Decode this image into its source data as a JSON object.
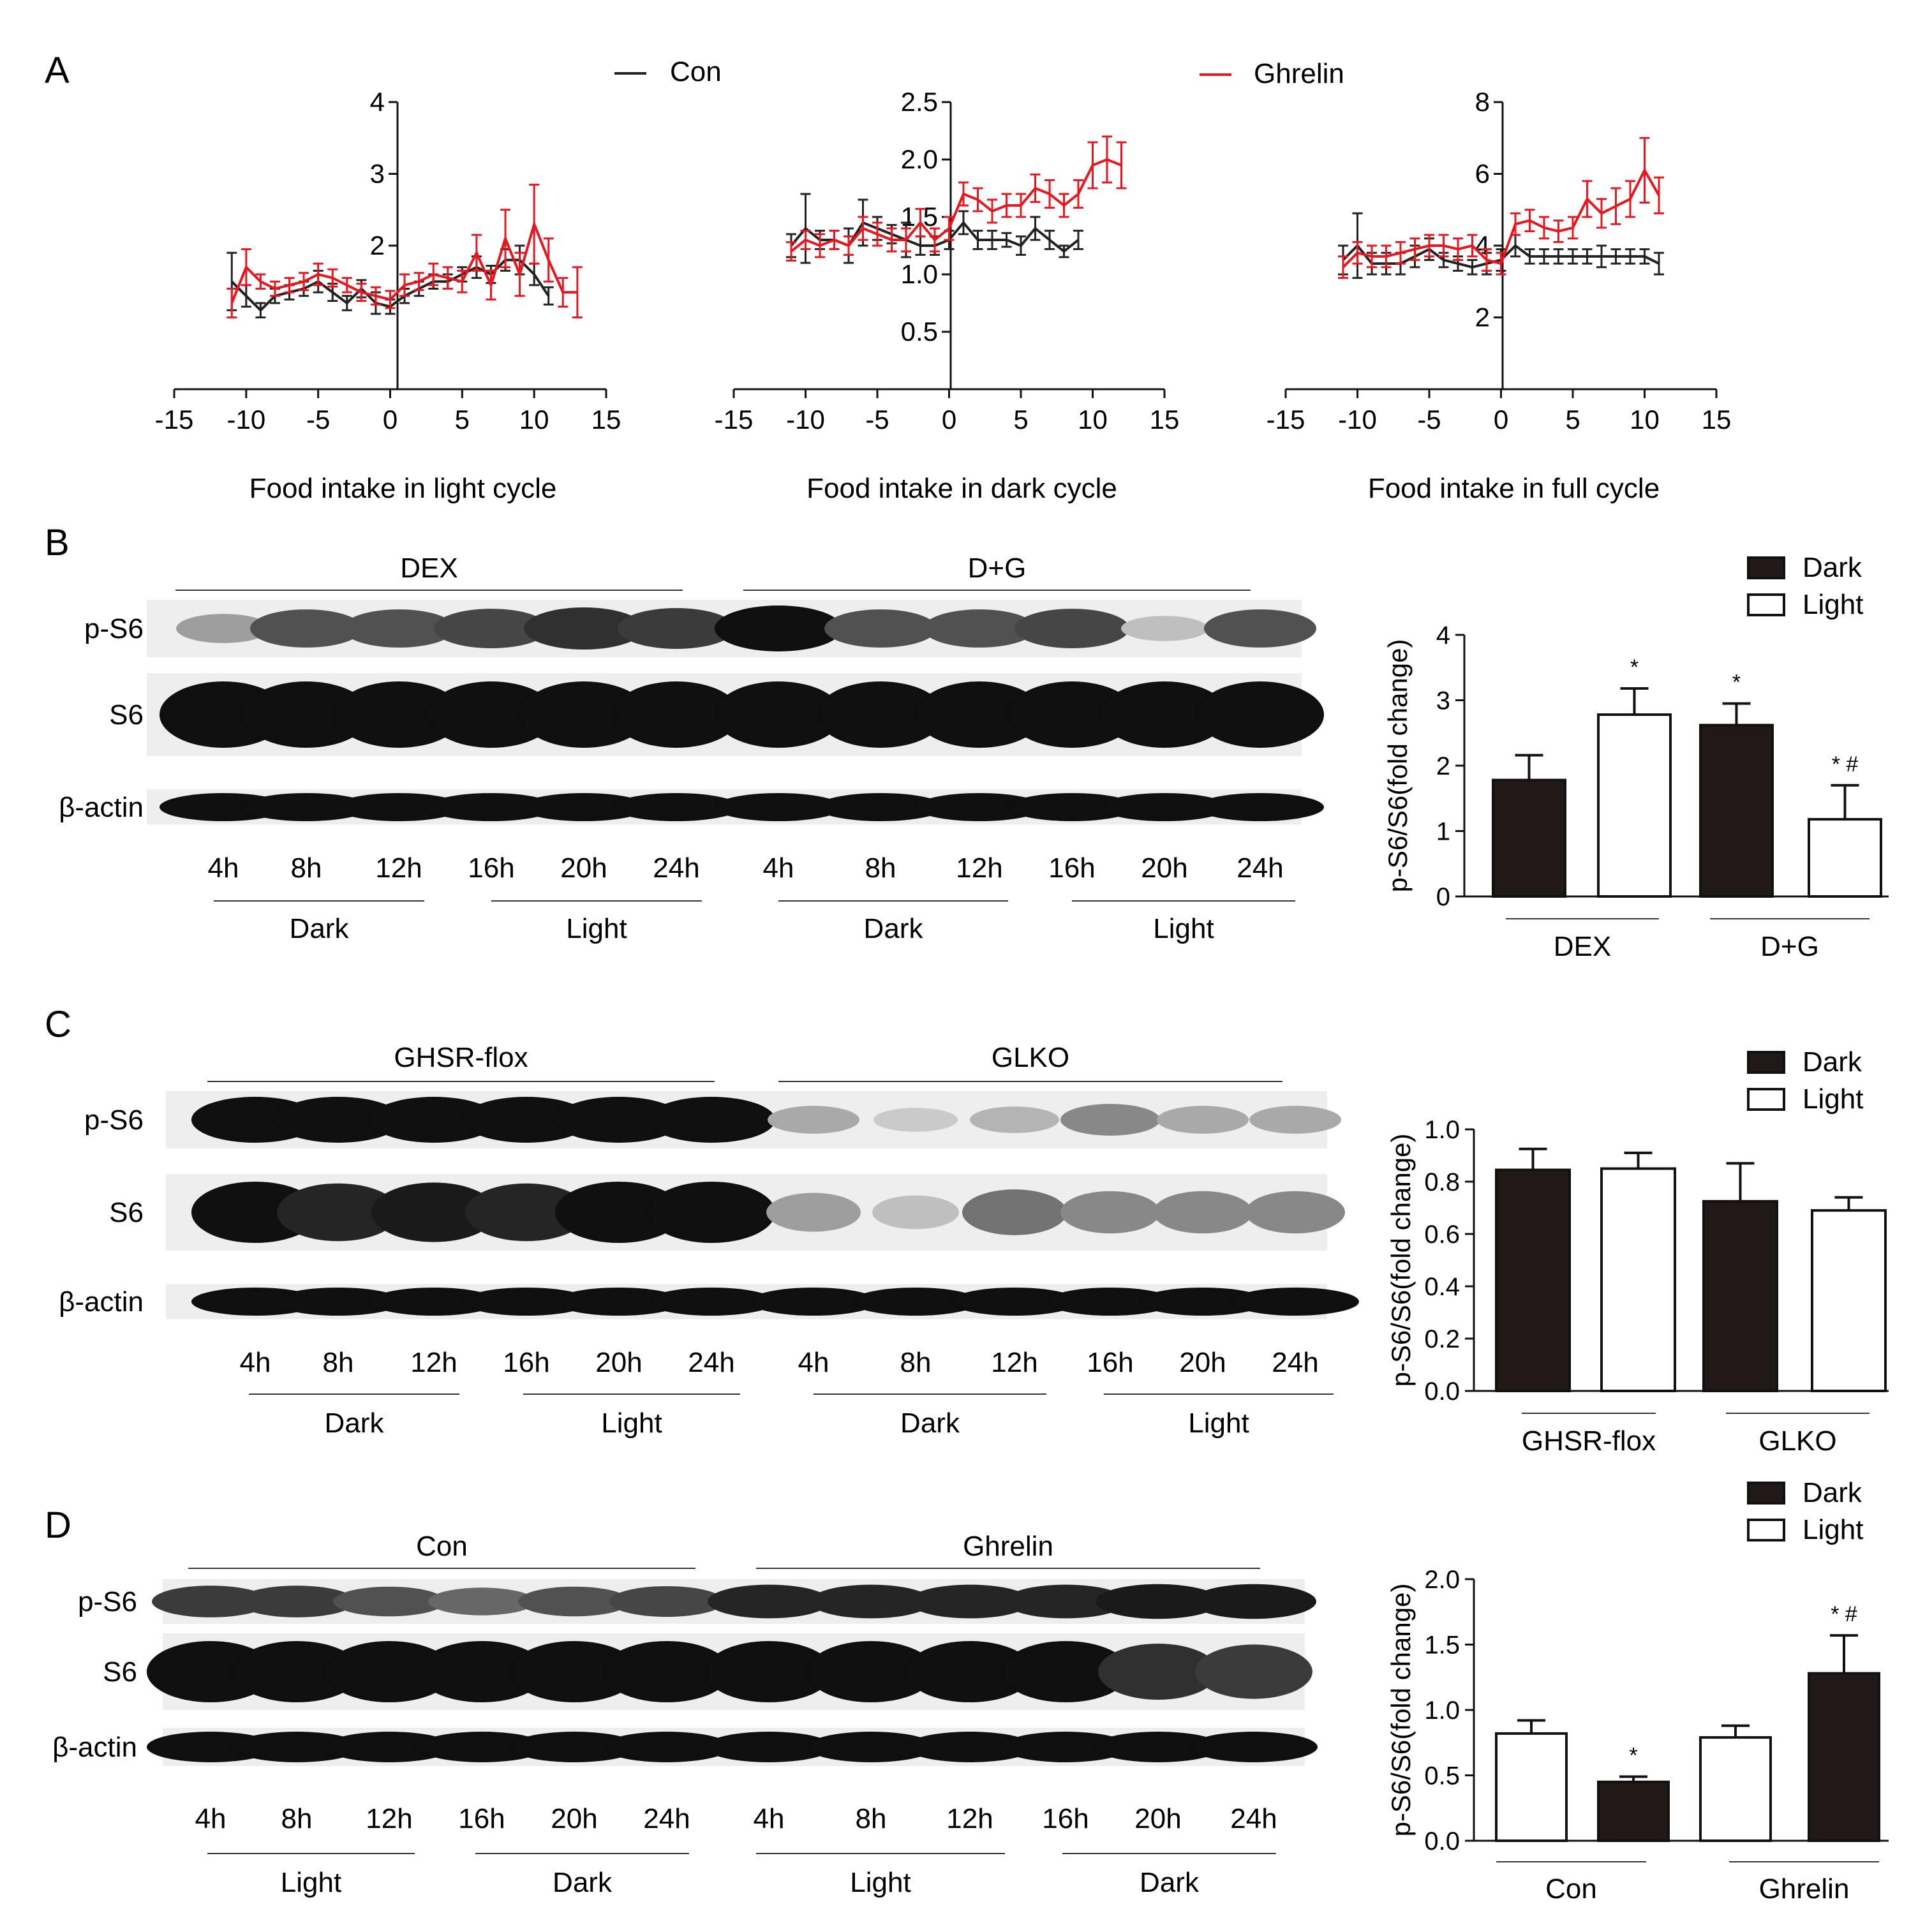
{
  "panel_letters": {
    "a": "A",
    "b": "B",
    "c": "C",
    "d": "D"
  },
  "colors": {
    "con": "#222222",
    "ghrelin": "#e8161e",
    "dark_bar": "#211918",
    "light_bar": "#ffffff"
  },
  "panel_a": {
    "legend": {
      "con": "Con",
      "ghrelin": "Ghrelin"
    },
    "x_ticks": [
      "-15",
      "-10",
      "-5",
      "0",
      "5",
      "10",
      "15"
    ]
  },
  "chart_data": [
    {
      "type": "line",
      "title": "",
      "xlabel": "Food intake in light cycle",
      "ylabel": "",
      "xlim": [
        -15,
        15
      ],
      "ylim": [
        0,
        4
      ],
      "y_ticks": [
        "2",
        "3",
        "4"
      ],
      "series": [
        {
          "name": "Con",
          "x": [
            -11,
            -10,
            -9,
            -8,
            -7,
            -6,
            -5,
            -4,
            -3,
            -2,
            -1,
            0,
            1,
            2,
            3,
            4,
            5,
            6,
            7,
            8,
            9,
            10,
            11
          ],
          "y": [
            1.5,
            1.3,
            1.1,
            1.3,
            1.35,
            1.4,
            1.5,
            1.35,
            1.2,
            1.4,
            1.2,
            1.15,
            1.3,
            1.4,
            1.5,
            1.5,
            1.6,
            1.7,
            1.6,
            1.8,
            1.8,
            1.6,
            1.3
          ],
          "err": [
            0.4,
            0.15,
            0.1,
            0.1,
            0.1,
            0.1,
            0.15,
            0.12,
            0.1,
            0.12,
            0.15,
            0.1,
            0.1,
            0.1,
            0.1,
            0.1,
            0.1,
            0.15,
            0.12,
            0.15,
            0.2,
            0.15,
            0.12
          ]
        },
        {
          "name": "Ghrelin",
          "x": [
            -11,
            -10,
            -9,
            -8,
            -7,
            -6,
            -5,
            -4,
            -3,
            -2,
            -1,
            0,
            1,
            2,
            3,
            4,
            5,
            6,
            7,
            8,
            9,
            10,
            11,
            12,
            13
          ],
          "y": [
            1.2,
            1.7,
            1.5,
            1.4,
            1.45,
            1.5,
            1.6,
            1.55,
            1.45,
            1.35,
            1.3,
            1.25,
            1.45,
            1.5,
            1.6,
            1.55,
            1.5,
            1.9,
            1.45,
            2.1,
            1.6,
            2.3,
            1.8,
            1.35,
            1.35
          ],
          "err": [
            0.2,
            0.25,
            0.1,
            0.1,
            0.1,
            0.12,
            0.15,
            0.12,
            0.1,
            0.12,
            0.12,
            0.12,
            0.15,
            0.12,
            0.15,
            0.15,
            0.15,
            0.25,
            0.2,
            0.4,
            0.3,
            0.55,
            0.3,
            0.2,
            0.35
          ]
        }
      ]
    },
    {
      "type": "line",
      "title": "",
      "xlabel": "Food intake in dark cycle",
      "ylabel": "",
      "xlim": [
        -15,
        15
      ],
      "ylim": [
        0,
        2.5
      ],
      "y_ticks": [
        "0.5",
        "1.0",
        "1.5",
        "2.0",
        "2.5"
      ],
      "series": [
        {
          "name": "Con",
          "x": [
            -11,
            -10,
            -9,
            -8,
            -7,
            -6,
            -5,
            -4,
            -3,
            -2,
            -1,
            0,
            1,
            2,
            3,
            4,
            5,
            6,
            7,
            8,
            9
          ],
          "y": [
            1.25,
            1.4,
            1.3,
            1.3,
            1.25,
            1.45,
            1.4,
            1.35,
            1.3,
            1.25,
            1.25,
            1.3,
            1.45,
            1.3,
            1.3,
            1.3,
            1.25,
            1.4,
            1.3,
            1.2,
            1.3
          ],
          "err": [
            0.1,
            0.3,
            0.08,
            0.08,
            0.15,
            0.2,
            0.1,
            0.08,
            0.15,
            0.08,
            0.08,
            0.08,
            0.1,
            0.08,
            0.08,
            0.06,
            0.08,
            0.1,
            0.08,
            0.05,
            0.08
          ]
        },
        {
          "name": "Ghrelin",
          "x": [
            -11,
            -10,
            -9,
            -8,
            -7,
            -6,
            -5,
            -4,
            -3,
            -2,
            -1,
            0,
            1,
            2,
            3,
            4,
            5,
            6,
            7,
            8,
            9,
            10,
            11,
            12
          ],
          "y": [
            1.2,
            1.3,
            1.25,
            1.3,
            1.25,
            1.4,
            1.35,
            1.3,
            1.3,
            1.45,
            1.3,
            1.4,
            1.7,
            1.65,
            1.55,
            1.6,
            1.6,
            1.75,
            1.7,
            1.6,
            1.7,
            1.95,
            2.0,
            1.95
          ],
          "err": [
            0.08,
            0.08,
            0.1,
            0.08,
            0.08,
            0.1,
            0.1,
            0.1,
            0.1,
            0.12,
            0.1,
            0.1,
            0.1,
            0.1,
            0.1,
            0.1,
            0.1,
            0.12,
            0.12,
            0.1,
            0.12,
            0.2,
            0.2,
            0.2
          ]
        }
      ]
    },
    {
      "type": "line",
      "title": "",
      "xlabel": "Food intake in full cycle",
      "ylabel": "",
      "xlim": [
        -15,
        15
      ],
      "ylim": [
        0,
        8
      ],
      "y_ticks": [
        "2",
        "4",
        "6",
        "8"
      ],
      "series": [
        {
          "name": "Con",
          "x": [
            -11,
            -10,
            -9,
            -8,
            -7,
            -6,
            -5,
            -4,
            -3,
            -2,
            -1,
            0,
            1,
            2,
            3,
            4,
            5,
            6,
            7,
            8,
            9,
            10,
            11
          ],
          "y": [
            3.6,
            4.0,
            3.5,
            3.5,
            3.5,
            3.7,
            3.9,
            3.6,
            3.5,
            3.4,
            3.5,
            3.6,
            4.0,
            3.7,
            3.7,
            3.7,
            3.7,
            3.7,
            3.7,
            3.7,
            3.7,
            3.7,
            3.5
          ],
          "err": [
            0.4,
            0.9,
            0.3,
            0.3,
            0.3,
            0.3,
            0.3,
            0.2,
            0.2,
            0.2,
            0.3,
            0.3,
            0.3,
            0.2,
            0.2,
            0.2,
            0.2,
            0.2,
            0.3,
            0.2,
            0.2,
            0.2,
            0.3
          ]
        },
        {
          "name": "Ghrelin",
          "x": [
            -11,
            -10,
            -9,
            -8,
            -7,
            -6,
            -5,
            -4,
            -3,
            -2,
            -1,
            0,
            1,
            2,
            3,
            4,
            5,
            6,
            7,
            8,
            9,
            10,
            11
          ],
          "y": [
            3.4,
            3.8,
            3.7,
            3.7,
            3.8,
            3.9,
            4.0,
            4.0,
            3.9,
            4.0,
            3.6,
            3.5,
            4.6,
            4.7,
            4.5,
            4.4,
            4.5,
            5.3,
            4.9,
            5.1,
            5.3,
            6.1,
            5.4
          ],
          "err": [
            0.3,
            0.3,
            0.3,
            0.3,
            0.3,
            0.3,
            0.3,
            0.3,
            0.3,
            0.3,
            0.3,
            0.3,
            0.3,
            0.3,
            0.3,
            0.3,
            0.3,
            0.5,
            0.4,
            0.5,
            0.5,
            0.9,
            0.5
          ]
        }
      ]
    },
    {
      "type": "bar",
      "title": "",
      "xlabel": "",
      "ylabel": "p-S6/S6(fold change)",
      "ylim": [
        0,
        4
      ],
      "y_ticks": [
        "0",
        "1",
        "2",
        "3",
        "4"
      ],
      "groups": [
        "DEX",
        "D+G"
      ],
      "series": [
        {
          "name": "Dark"
        },
        {
          "name": "Light"
        }
      ],
      "bars": [
        {
          "group": "DEX",
          "series": "Dark",
          "value": 1.78,
          "err": 0.38,
          "mark": ""
        },
        {
          "group": "DEX",
          "series": "Light",
          "value": 2.78,
          "err": 0.4,
          "mark": "*"
        },
        {
          "group": "D+G",
          "series": "Dark",
          "value": 2.62,
          "err": 0.33,
          "mark": "*"
        },
        {
          "group": "D+G",
          "series": "Light",
          "value": 1.18,
          "err": 0.52,
          "mark": "* #"
        }
      ]
    },
    {
      "type": "bar",
      "title": "",
      "xlabel": "",
      "ylabel": "p-S6/S6(fold change)",
      "ylim": [
        0,
        1.0
      ],
      "y_ticks": [
        "0.0",
        "0.2",
        "0.4",
        "0.6",
        "0.8",
        "1.0"
      ],
      "groups": [
        "GHSR-flox",
        "GLKO"
      ],
      "series": [
        {
          "name": "Dark"
        },
        {
          "name": "Light"
        }
      ],
      "bars": [
        {
          "group": "GHSR-flox",
          "series": "Dark",
          "value": 0.845,
          "err": 0.08,
          "mark": ""
        },
        {
          "group": "GHSR-flox",
          "series": "Light",
          "value": 0.85,
          "err": 0.06,
          "mark": ""
        },
        {
          "group": "GLKO",
          "series": "Dark",
          "value": 0.725,
          "err": 0.145,
          "mark": ""
        },
        {
          "group": "GLKO",
          "series": "Light",
          "value": 0.69,
          "err": 0.05,
          "mark": ""
        }
      ]
    },
    {
      "type": "bar",
      "title": "",
      "xlabel": "",
      "ylabel": "p-S6/S6(fold change)",
      "ylim": [
        0,
        2.0
      ],
      "y_ticks": [
        "0.0",
        "0.5",
        "1.0",
        "1.5",
        "2.0"
      ],
      "groups": [
        "Con",
        "Ghrelin"
      ],
      "series": [
        {
          "name": "Dark"
        },
        {
          "name": "Light"
        }
      ],
      "bars": [
        {
          "group": "Con",
          "series": "Light",
          "value": 0.82,
          "err": 0.1,
          "mark": ""
        },
        {
          "group": "Con",
          "series": "Dark",
          "value": 0.45,
          "err": 0.04,
          "mark": "*"
        },
        {
          "group": "Ghrelin",
          "series": "Light",
          "value": 0.79,
          "err": 0.09,
          "mark": ""
        },
        {
          "group": "Ghrelin",
          "series": "Dark",
          "value": 1.28,
          "err": 0.29,
          "mark": "* #"
        }
      ]
    }
  ],
  "blots": {
    "b": {
      "groups": [
        "DEX",
        "D+G"
      ],
      "rows": [
        "p-S6",
        "S6",
        "β-actin"
      ],
      "times": [
        "4h",
        "8h",
        "12h",
        "16h",
        "20h",
        "24h",
        "4h",
        "8h",
        "12h",
        "16h",
        "20h",
        "24h"
      ],
      "phases": [
        "Dark",
        "Light",
        "Dark",
        "Light"
      ],
      "intensity": {
        "p-S6": [
          0.35,
          0.7,
          0.7,
          0.75,
          0.85,
          0.8,
          1.0,
          0.7,
          0.7,
          0.75,
          0.2,
          0.7
        ],
        "S6": [
          1,
          1,
          1,
          1,
          1,
          1,
          1,
          1,
          1,
          1,
          1,
          1
        ],
        "β-actin": [
          1,
          1,
          1,
          1,
          1,
          1,
          1,
          1,
          1,
          1,
          1,
          1
        ]
      }
    },
    "c": {
      "groups": [
        "GHSR-flox",
        "GLKO"
      ],
      "rows": [
        "p-S6",
        "S6",
        "β-actin"
      ],
      "times": [
        "4h",
        "8h",
        "12h",
        "16h",
        "20h",
        "24h",
        "4h",
        "8h",
        "12h",
        "16h",
        "20h",
        "24h"
      ],
      "phases": [
        "Dark",
        "Light",
        "Dark",
        "Light"
      ],
      "intensity": {
        "p-S6": [
          1,
          1,
          1,
          1,
          1,
          1,
          0.3,
          0.15,
          0.25,
          0.45,
          0.3,
          0.3
        ],
        "S6": [
          1,
          0.9,
          0.95,
          0.9,
          1,
          1,
          0.35,
          0.2,
          0.55,
          0.45,
          0.45,
          0.45
        ],
        "β-actin": [
          1,
          1,
          1,
          1,
          1,
          1,
          1,
          1,
          1,
          1,
          1,
          1
        ]
      }
    },
    "d": {
      "groups": [
        "Con",
        "Ghrelin"
      ],
      "rows": [
        "p-S6",
        "S6",
        "β-actin"
      ],
      "times": [
        "4h",
        "8h",
        "12h",
        "16h",
        "20h",
        "24h",
        "4h",
        "8h",
        "12h",
        "16h",
        "20h",
        "24h"
      ],
      "phases": [
        "Light",
        "Dark",
        "Light",
        "Dark"
      ],
      "intensity": {
        "p-S6": [
          0.8,
          0.8,
          0.7,
          0.6,
          0.7,
          0.75,
          0.9,
          0.9,
          0.9,
          0.9,
          0.95,
          0.95
        ],
        "S6": [
          1,
          1,
          1,
          1,
          1,
          1,
          1,
          1,
          1,
          1,
          0.85,
          0.8
        ],
        "β-actin": [
          1,
          1,
          1,
          1,
          1,
          1,
          1,
          1,
          1,
          1,
          1,
          1
        ]
      }
    }
  }
}
